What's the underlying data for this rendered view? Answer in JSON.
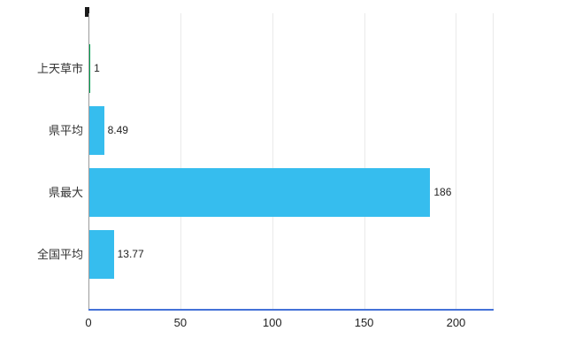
{
  "chart_data": {
    "type": "bar",
    "orientation": "horizontal",
    "title": "",
    "xlabel": "",
    "ylabel": "",
    "categories": [
      "上天草市",
      "県平均",
      "県最大",
      "全国平均"
    ],
    "values": [
      1,
      8.49,
      186,
      13.77
    ],
    "value_labels": [
      "1",
      "8.49",
      "186",
      "13.77"
    ],
    "bar_colors": [
      "#00A050",
      "#36BDEE",
      "#36BDEE",
      "#36BDEE"
    ],
    "xlim": [
      0,
      220
    ],
    "x_ticks": [
      0,
      50,
      100,
      150,
      200
    ],
    "x_tick_labels": [
      "0",
      "50",
      "100",
      "150",
      "200"
    ],
    "grid": true,
    "legend": false,
    "colors": {
      "bar": "#36BDEE",
      "highlight_bar": "#00A050",
      "x_axis_line": "#4472D8",
      "y_axis_line": "#9B9B9B",
      "gridline": "#EAEAEA",
      "text": "#222222",
      "background": "#FFFFFF"
    }
  }
}
